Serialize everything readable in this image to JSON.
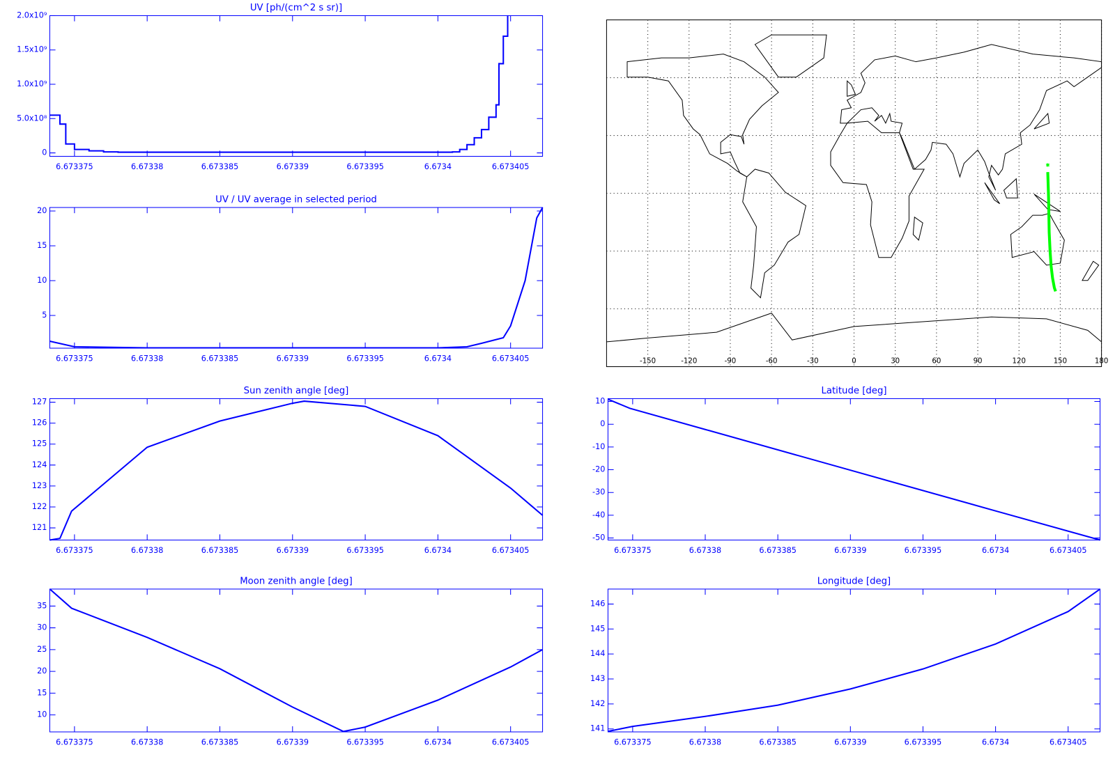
{
  "chart_data": [
    {
      "type": "line",
      "step": true,
      "title": "UV [ph/(cm^2 s sr)]",
      "color": "#0000ff",
      "x": [
        6.6733733,
        6.673374,
        6.6733744,
        6.673375,
        6.673376,
        6.673377,
        6.673378,
        6.67339,
        6.673401,
        6.6734015,
        6.673402,
        6.6734025,
        6.673403,
        6.6734035,
        6.673404,
        6.6734042,
        6.6734045,
        6.6734048
      ],
      "values": [
        550000000,
        420000000,
        130000000,
        50000000,
        30000000,
        15000000,
        10000000,
        10000000,
        15000000,
        50000000,
        120000000,
        220000000,
        340000000,
        520000000,
        700000000,
        1300000000,
        1700000000,
        2000000000
      ],
      "xlim": [
        6.6733733,
        6.6734072
      ],
      "ylim": [
        -50000000,
        2000000000
      ],
      "xticks": [
        6.673375,
        6.67338,
        6.673385,
        6.67339,
        6.673395,
        6.6734,
        6.673405
      ],
      "yticks": [
        0,
        {
          "value": 500000000,
          "label": "5.0x10⁸"
        },
        {
          "value": 1000000000,
          "label": "1.0x10⁹"
        },
        {
          "value": 1500000000,
          "label": "1.5x10⁹"
        },
        {
          "value": 2000000000,
          "label": "2.0x10⁹"
        }
      ]
    },
    {
      "type": "line",
      "title": "UV / UV average in selected period",
      "color": "#0000ff",
      "x": [
        6.6733733,
        6.673375,
        6.67338,
        6.6734,
        6.673402,
        6.673403,
        6.6734045,
        6.673405,
        6.673406,
        6.6734068,
        6.6734072
      ],
      "values": [
        1.3,
        0.5,
        0.35,
        0.35,
        0.5,
        1.0,
        1.8,
        3.5,
        10,
        19,
        20.5
      ],
      "xlim": [
        6.6733733,
        6.6734072
      ],
      "ylim": [
        0.3,
        20.5
      ],
      "xticks": [
        6.673375,
        6.67338,
        6.673385,
        6.67339,
        6.673395,
        6.6734,
        6.673405
      ],
      "yticks": [
        5,
        10,
        15,
        20
      ]
    },
    {
      "type": "line",
      "title": "Sun zenith angle [deg]",
      "color": "#0000ff",
      "x": [
        6.6733733,
        6.673374,
        6.6733748,
        6.67338,
        6.673385,
        6.67339,
        6.6733908,
        6.673395,
        6.6734,
        6.673405,
        6.6734072
      ],
      "values": [
        120.42,
        120.5,
        121.8,
        124.85,
        126.1,
        126.95,
        127.05,
        126.8,
        125.4,
        122.9,
        121.6
      ],
      "xlim": [
        6.6733733,
        6.6734072
      ],
      "ylim": [
        120.42,
        127.17
      ],
      "xticks": [
        6.673375,
        6.67338,
        6.673385,
        6.67339,
        6.673395,
        6.6734,
        6.673405
      ],
      "yticks": [
        121,
        122,
        123,
        124,
        125,
        126,
        127
      ]
    },
    {
      "type": "line",
      "title": "Moon zenith angle [deg]",
      "color": "#0000ff",
      "x": [
        6.6733733,
        6.6733748,
        6.67338,
        6.673385,
        6.67339,
        6.6733935,
        6.673395,
        6.6734,
        6.673405,
        6.6734072
      ],
      "values": [
        38.9,
        34.5,
        27.8,
        20.6,
        11.8,
        6.2,
        7.2,
        13.4,
        21,
        25
      ],
      "xlim": [
        6.6733733,
        6.6734072
      ],
      "ylim": [
        6.1,
        38.9
      ],
      "xticks": [
        6.673375,
        6.67338,
        6.673385,
        6.67339,
        6.673395,
        6.6734,
        6.673405
      ],
      "yticks": [
        10,
        15,
        20,
        25,
        30,
        35
      ]
    },
    {
      "type": "line",
      "title": "Latitude [deg]",
      "color": "#0000ff",
      "x": [
        6.6733733,
        6.6733748,
        6.67338,
        6.67339,
        6.6734,
        6.6734072
      ],
      "values": [
        11,
        7,
        -2.3,
        -20.2,
        -38.1,
        -50.9
      ],
      "xlim": [
        6.6733733,
        6.6734072
      ],
      "ylim": [
        -50.9,
        11.25
      ],
      "xticks": [
        6.673375,
        6.67338,
        6.673385,
        6.67339,
        6.673395,
        6.6734,
        6.673405
      ],
      "yticks": [
        -50,
        -40,
        -30,
        -20,
        -10,
        0,
        10
      ]
    },
    {
      "type": "line",
      "title": "Longitude [deg]",
      "color": "#0000ff",
      "x": [
        6.6733733,
        6.673375,
        6.67338,
        6.673385,
        6.67339,
        6.673395,
        6.6734,
        6.673405,
        6.6734072
      ],
      "values": [
        140.9,
        141.1,
        141.5,
        141.95,
        142.6,
        143.4,
        144.4,
        145.7,
        146.6
      ],
      "xlim": [
        6.6733733,
        6.6734072
      ],
      "ylim": [
        140.88,
        146.6
      ],
      "xticks": [
        6.673375,
        6.67338,
        6.673385,
        6.67339,
        6.673395,
        6.6734,
        6.673405
      ],
      "yticks": [
        141,
        142,
        143,
        144,
        145,
        146
      ]
    },
    {
      "type": "map",
      "color": "#00ff00",
      "x": [
        140.9,
        141.1,
        141.5,
        141.95,
        142.6,
        143.4,
        144.4,
        145.7,
        146.6
      ],
      "values": [
        11,
        7,
        -2.3,
        -20.2,
        -30,
        -38.1,
        -44,
        -49,
        -50.9
      ],
      "xlim": [
        -180,
        180
      ],
      "ylim": [
        -90,
        90
      ],
      "xticks": [
        -150,
        -120,
        -90,
        -60,
        -30,
        0,
        30,
        60,
        90,
        120,
        150,
        180
      ]
    }
  ]
}
